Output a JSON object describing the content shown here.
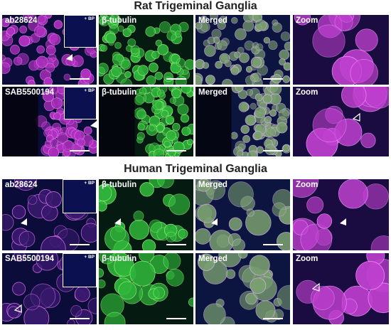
{
  "sections": [
    {
      "title": "Rat Trigeminal Ganglia",
      "rows": [
        {
          "panels": [
            {
              "label": "ab28624",
              "inset": "+ BP"
            },
            {
              "label": "β-tubulin"
            },
            {
              "label": "Merged"
            },
            {
              "label": "Zoom"
            }
          ]
        },
        {
          "panels": [
            {
              "label": "SAB5500194",
              "inset": "+ BP"
            },
            {
              "label": "β-tubulin"
            },
            {
              "label": "Merged"
            },
            {
              "label": "Zoom"
            }
          ]
        }
      ]
    },
    {
      "title": "Human Trigeminal Ganglia",
      "rows": [
        {
          "panels": [
            {
              "label": "ab28624",
              "inset": "+ BP"
            },
            {
              "label": "β-tubulin"
            },
            {
              "label": "Merged"
            },
            {
              "label": "Zoom"
            }
          ]
        },
        {
          "panels": [
            {
              "label": "SAB5500194",
              "inset": "+ BP"
            },
            {
              "label": "β-tubulin"
            },
            {
              "label": "Merged"
            },
            {
              "label": "Zoom"
            }
          ]
        }
      ]
    }
  ]
}
